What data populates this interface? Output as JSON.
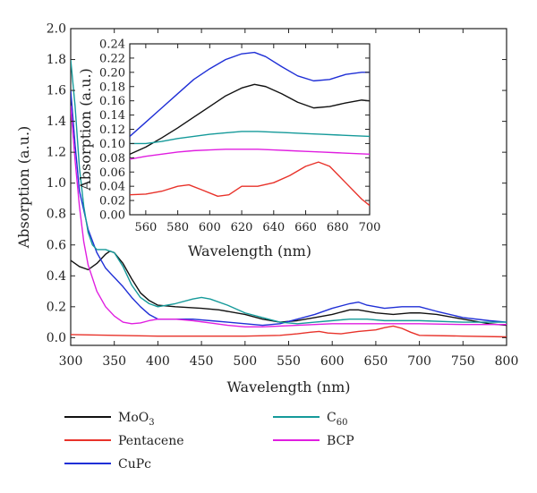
{
  "chart_data": [
    {
      "type": "line",
      "xlabel": "Wavelength (nm)",
      "ylabel": "Absorption (a.u.)",
      "xlim": [
        300,
        800
      ],
      "ylim": [
        -0.05,
        2.0
      ],
      "x_ticks": [
        300,
        350,
        400,
        450,
        500,
        550,
        600,
        650,
        700,
        750,
        800
      ],
      "y_ticks": [
        0.0,
        0.2,
        0.4,
        0.6,
        0.8,
        1.0,
        1.2,
        1.4,
        1.6,
        1.8,
        2.0
      ],
      "grid": false,
      "legend_position": "below",
      "series": [
        {
          "name": "MoO3",
          "color": "#111111",
          "x": [
            300,
            310,
            320,
            330,
            340,
            345,
            350,
            360,
            370,
            380,
            390,
            400,
            420,
            450,
            470,
            500,
            520,
            540,
            560,
            580,
            600,
            620,
            630,
            650,
            670,
            690,
            700,
            720,
            750,
            780,
            800
          ],
          "y": [
            0.5,
            0.46,
            0.44,
            0.48,
            0.54,
            0.56,
            0.55,
            0.48,
            0.38,
            0.29,
            0.24,
            0.21,
            0.2,
            0.19,
            0.18,
            0.15,
            0.12,
            0.1,
            0.11,
            0.13,
            0.15,
            0.18,
            0.18,
            0.16,
            0.15,
            0.16,
            0.16,
            0.15,
            0.12,
            0.09,
            0.08
          ]
        },
        {
          "name": "Pentacene",
          "color": "#e8322a",
          "x": [
            300,
            350,
            400,
            450,
            500,
            540,
            560,
            575,
            585,
            595,
            610,
            630,
            650,
            660,
            670,
            680,
            690,
            700,
            750,
            800
          ],
          "y": [
            0.02,
            0.015,
            0.01,
            0.01,
            0.01,
            0.015,
            0.025,
            0.035,
            0.04,
            0.03,
            0.025,
            0.04,
            0.05,
            0.065,
            0.075,
            0.06,
            0.035,
            0.015,
            0.01,
            0.005
          ]
        },
        {
          "name": "CuPc",
          "color": "#1f2fd6",
          "x": [
            300,
            305,
            310,
            320,
            330,
            340,
            350,
            360,
            370,
            380,
            390,
            400,
            420,
            440,
            460,
            480,
            500,
            520,
            540,
            560,
            580,
            600,
            620,
            630,
            640,
            660,
            680,
            700,
            720,
            750,
            780,
            800
          ],
          "y": [
            1.6,
            1.25,
            0.95,
            0.7,
            0.55,
            0.45,
            0.39,
            0.33,
            0.26,
            0.2,
            0.15,
            0.12,
            0.12,
            0.12,
            0.11,
            0.1,
            0.09,
            0.08,
            0.09,
            0.12,
            0.15,
            0.19,
            0.22,
            0.23,
            0.21,
            0.19,
            0.2,
            0.2,
            0.17,
            0.13,
            0.11,
            0.1
          ]
        },
        {
          "name": "C60",
          "color": "#159a9a",
          "x": [
            300,
            305,
            310,
            315,
            320,
            325,
            330,
            340,
            350,
            360,
            370,
            380,
            390,
            400,
            420,
            440,
            450,
            460,
            480,
            500,
            520,
            540,
            560,
            580,
            600,
            620,
            640,
            660,
            700,
            750,
            800
          ],
          "y": [
            1.8,
            1.5,
            1.1,
            0.85,
            0.68,
            0.6,
            0.57,
            0.57,
            0.55,
            0.46,
            0.34,
            0.26,
            0.22,
            0.2,
            0.22,
            0.25,
            0.26,
            0.25,
            0.21,
            0.16,
            0.13,
            0.1,
            0.09,
            0.1,
            0.11,
            0.12,
            0.12,
            0.11,
            0.11,
            0.1,
            0.1
          ]
        },
        {
          "name": "BCP",
          "color": "#e01ee0",
          "x": [
            300,
            305,
            310,
            315,
            320,
            330,
            340,
            350,
            360,
            370,
            380,
            390,
            400,
            420,
            440,
            460,
            480,
            500,
            520,
            540,
            560,
            600,
            650,
            700,
            750,
            800
          ],
          "y": [
            1.5,
            1.15,
            0.85,
            0.62,
            0.47,
            0.3,
            0.2,
            0.14,
            0.1,
            0.09,
            0.095,
            0.11,
            0.12,
            0.12,
            0.11,
            0.095,
            0.08,
            0.07,
            0.07,
            0.075,
            0.08,
            0.09,
            0.09,
            0.09,
            0.085,
            0.085
          ]
        }
      ]
    },
    {
      "type": "line",
      "xlabel": "Wavelength (nm)",
      "ylabel": "Absorption (a.u.)",
      "xlim": [
        550,
        700
      ],
      "ylim": [
        0.0,
        0.24
      ],
      "x_ticks": [
        560,
        580,
        600,
        620,
        640,
        660,
        680,
        700
      ],
      "y_ticks": [
        0.0,
        0.02,
        0.04,
        0.06,
        0.08,
        0.1,
        0.12,
        0.14,
        0.16,
        0.18,
        0.2,
        0.22,
        0.24
      ],
      "grid": false,
      "series": [
        {
          "name": "CuPc",
          "color": "#1f2fd6",
          "x": [
            550,
            560,
            570,
            580,
            590,
            600,
            610,
            620,
            628,
            635,
            645,
            655,
            665,
            675,
            685,
            695,
            700
          ],
          "y": [
            0.11,
            0.13,
            0.15,
            0.17,
            0.19,
            0.205,
            0.218,
            0.226,
            0.228,
            0.222,
            0.208,
            0.195,
            0.188,
            0.19,
            0.197,
            0.2,
            0.2
          ]
        },
        {
          "name": "MoO3",
          "color": "#111111",
          "x": [
            550,
            560,
            570,
            580,
            590,
            600,
            610,
            620,
            628,
            635,
            645,
            655,
            665,
            675,
            685,
            695,
            700
          ],
          "y": [
            0.085,
            0.095,
            0.108,
            0.122,
            0.137,
            0.152,
            0.167,
            0.178,
            0.183,
            0.18,
            0.17,
            0.158,
            0.15,
            0.152,
            0.157,
            0.161,
            0.16
          ]
        },
        {
          "name": "C60",
          "color": "#159a9a",
          "x": [
            550,
            560,
            570,
            580,
            590,
            600,
            610,
            620,
            630,
            640,
            650,
            660,
            670,
            680,
            690,
            700
          ],
          "y": [
            0.1,
            0.1,
            0.103,
            0.107,
            0.11,
            0.113,
            0.115,
            0.117,
            0.117,
            0.116,
            0.115,
            0.114,
            0.113,
            0.112,
            0.111,
            0.11
          ]
        },
        {
          "name": "BCP",
          "color": "#e01ee0",
          "x": [
            550,
            560,
            570,
            580,
            590,
            600,
            610,
            620,
            630,
            640,
            650,
            660,
            670,
            680,
            690,
            700
          ],
          "y": [
            0.078,
            0.082,
            0.085,
            0.088,
            0.09,
            0.091,
            0.092,
            0.092,
            0.092,
            0.091,
            0.09,
            0.089,
            0.088,
            0.087,
            0.086,
            0.085
          ]
        },
        {
          "name": "Pentacene",
          "color": "#e8322a",
          "x": [
            550,
            560,
            570,
            580,
            587,
            595,
            605,
            612,
            620,
            630,
            640,
            650,
            660,
            668,
            675,
            685,
            695,
            700
          ],
          "y": [
            0.028,
            0.029,
            0.033,
            0.04,
            0.042,
            0.035,
            0.026,
            0.028,
            0.04,
            0.04,
            0.045,
            0.055,
            0.068,
            0.074,
            0.068,
            0.045,
            0.022,
            0.013
          ]
        }
      ]
    }
  ],
  "legend": {
    "entries": [
      {
        "base": "MoO",
        "sub": "3",
        "color": "#111111"
      },
      {
        "base": "Pentacene",
        "sub": "",
        "color": "#e8322a"
      },
      {
        "base": "CuPc",
        "sub": "",
        "color": "#1f2fd6"
      },
      {
        "base": "C",
        "sub": "60",
        "color": "#159a9a"
      },
      {
        "base": "BCP",
        "sub": "",
        "color": "#e01ee0"
      }
    ]
  }
}
